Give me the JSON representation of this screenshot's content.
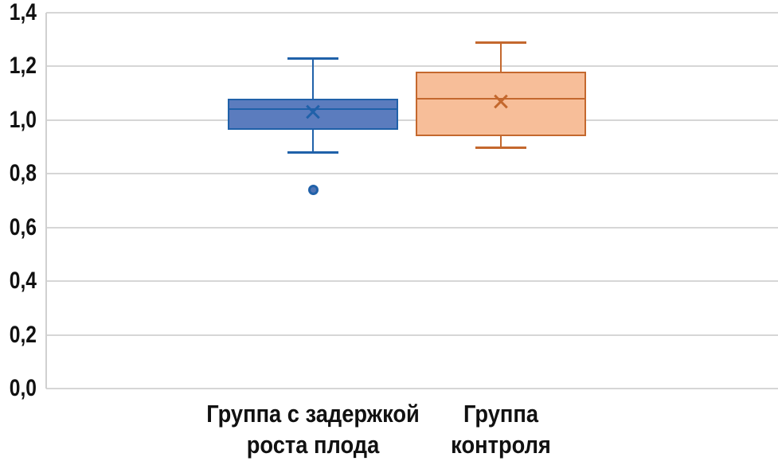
{
  "chart_data": {
    "type": "boxplot",
    "title": "",
    "xlabel": "",
    "ylabel": "",
    "decimal_separator": ",",
    "grid": true,
    "gridline_color": "#D6D6D6",
    "axis_line_color": "#D0D0D0",
    "text_color": "#111111",
    "background_color": "#FFFFFF",
    "legend": "none",
    "y_axis": {
      "min": 0.0,
      "max": 1.4,
      "step": 0.2,
      "ticks": [
        {
          "value": 1.4,
          "label": "1,4"
        },
        {
          "value": 1.2,
          "label": "1,2"
        },
        {
          "value": 1.0,
          "label": "1,0"
        },
        {
          "value": 0.8,
          "label": "0,8"
        },
        {
          "value": 0.6,
          "label": "0,6"
        },
        {
          "value": 0.4,
          "label": "0,4"
        },
        {
          "value": 0.2,
          "label": "0,2"
        },
        {
          "value": 0.0,
          "label": "0,0"
        }
      ]
    },
    "series": [
      {
        "category": "Группа с задержкой роста плода",
        "category_lines": [
          "Группа с задержкой",
          "роста плода"
        ],
        "whisker_high": 1.23,
        "q3": 1.08,
        "median": 1.04,
        "mean": 1.03,
        "q1": 0.965,
        "whisker_low": 0.88,
        "outliers": [
          0.74
        ],
        "fill_color": "#5B7CBE",
        "stroke_color": "#2061A9",
        "outlier_fill_color": "#4F74B5"
      },
      {
        "category": "Группа контроля",
        "category_lines": [
          "Группа",
          "контроля"
        ],
        "whisker_high": 1.29,
        "q3": 1.18,
        "median": 1.08,
        "mean": 1.07,
        "q1": 0.94,
        "whisker_low": 0.9,
        "outliers": [],
        "fill_color": "#F7BE99",
        "stroke_color": "#C4682E",
        "outlier_fill_color": "#F7BE99"
      }
    ]
  }
}
